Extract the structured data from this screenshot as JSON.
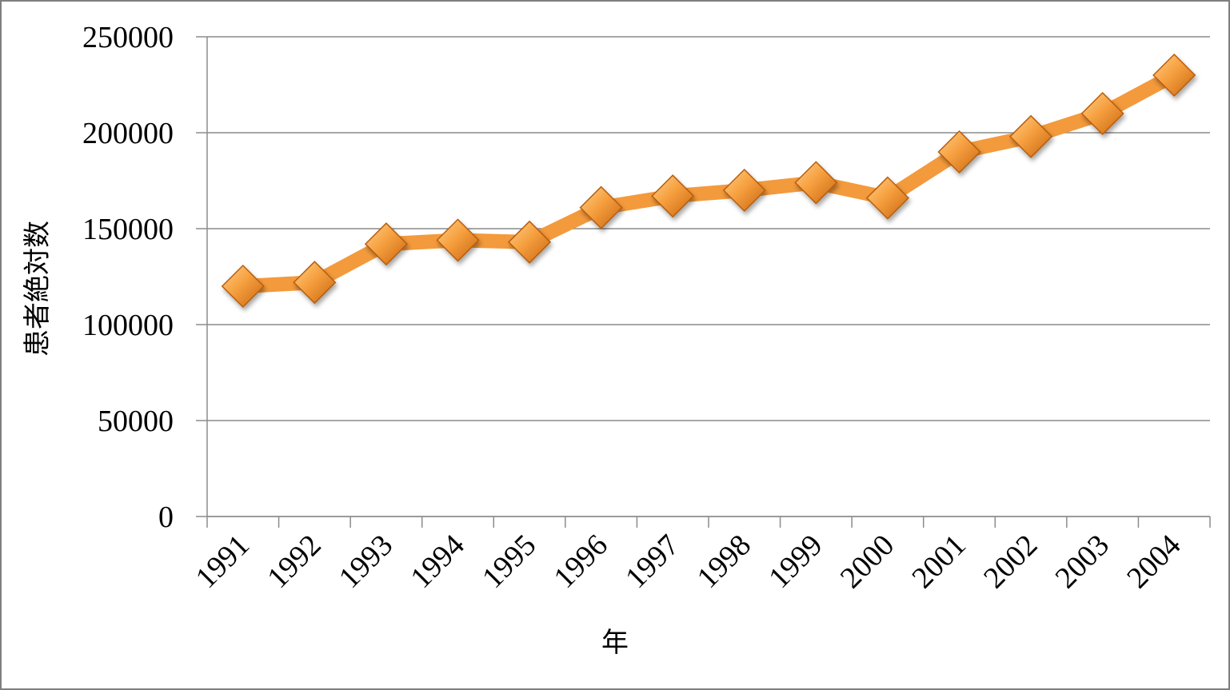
{
  "chart_data": {
    "type": "line",
    "title": "",
    "xlabel": "年",
    "ylabel": "患者絶対数",
    "categories": [
      "1991",
      "1992",
      "1993",
      "1994",
      "1995",
      "1996",
      "1997",
      "1998",
      "1999",
      "2000",
      "2001",
      "2002",
      "2003",
      "2004"
    ],
    "series": [
      {
        "values": [
          120000,
          122000,
          142000,
          144000,
          143000,
          161000,
          167000,
          170000,
          174000,
          166000,
          190000,
          198000,
          210000,
          230000
        ],
        "color": "#f39a3c"
      }
    ],
    "ylim": [
      0,
      250000
    ],
    "yticks": [
      "0",
      "50000",
      "100000",
      "150000",
      "200000",
      "250000"
    ],
    "grid": true,
    "marker": "diamond",
    "legend": "none"
  }
}
